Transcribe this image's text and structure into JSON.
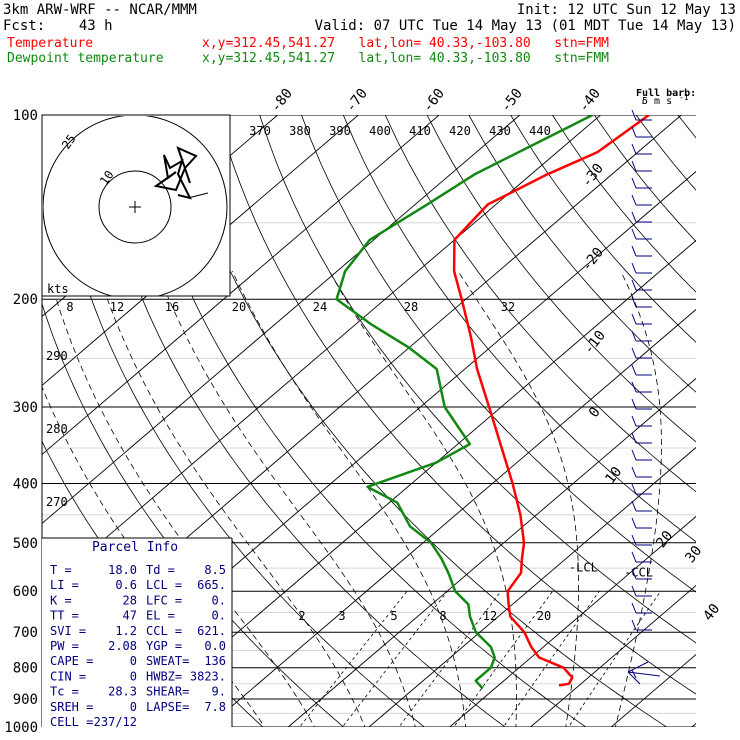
{
  "header": {
    "model": "3km ARW-WRF -- NCAR/MMM",
    "init": "Init: 12 UTC Sun 12 May 13",
    "fcst": "Fcst:    43 h",
    "valid": "Valid: 07 UTC Tue 14 May 13 (01 MDT Tue 14 May 13)",
    "temp_label": "Temperature",
    "temp_info": "x,y=312.45,541.27   lat,lon= 40.33,-103.80   stn=FMM",
    "dew_label": "Dewpoint temperature",
    "dew_info": "x,y=312.45,541.27   lat,lon= 40.33,-103.80   stn=FMM"
  },
  "colors": {
    "temperature": "#ff0000",
    "dewpoint": "#118811",
    "wind_barbs": "#000080",
    "text": "#000000"
  },
  "barb_legend": {
    "title": "Full barb:",
    "value": "5 m s",
    "exponent": "-1"
  },
  "parcel_info": {
    "title": "Parcel Info",
    "rows": [
      {
        "l": "T   =",
        "lv": "18.0",
        "r": "Td  =",
        "rv": "8.5"
      },
      {
        "l": "LI  =",
        "lv": "0.6",
        "r": "LCL =",
        "rv": "665."
      },
      {
        "l": "K   =",
        "lv": "28",
        "r": "LFC =",
        "rv": "0."
      },
      {
        "l": "TT  =",
        "lv": "47",
        "r": "EL  =",
        "rv": "0."
      },
      {
        "l": "SVI =",
        "lv": "1.2",
        "r": "CCL =",
        "rv": "621."
      },
      {
        "l": "PW  =",
        "lv": "2.08",
        "r": "YGP =",
        "rv": "0.0"
      },
      {
        "l": "CAPE =",
        "lv": "0",
        "r": "SWEAT=",
        "rv": "136"
      },
      {
        "l": "CIN  =",
        "lv": "0",
        "r": "HWBZ=",
        "rv": "3823."
      },
      {
        "l": "Tc  =",
        "lv": "28.3",
        "r": "SHEAR=",
        "rv": "9."
      },
      {
        "l": "SREH =",
        "lv": "0",
        "r": "LAPSE=",
        "rv": "7.8"
      },
      {
        "l": "CELL =",
        "lv": "237/12",
        "r": "",
        "rv": ""
      }
    ]
  },
  "hodograph": {
    "units": "kts",
    "ring_labels": [
      "25",
      "10"
    ],
    "speed_axis_labels": [
      "8",
      "12",
      "16",
      "20",
      "24",
      "28",
      "32"
    ]
  },
  "markers": {
    "ccl": "-CCL",
    "lcl": "-LCL"
  },
  "chart_data": {
    "type": "line",
    "chart_kind": "skew-T log-p",
    "pressure_ticks": [
      "100",
      "200",
      "300",
      "400",
      "500",
      "600",
      "700",
      "800",
      "900",
      "1000"
    ],
    "isotherm_labels_top": [
      "-80",
      "-70",
      "-60",
      "-50",
      "-40"
    ],
    "isotherm_labels_right": [
      "-30",
      "-20",
      "-10",
      "0",
      "10",
      "20",
      "30",
      "40"
    ],
    "theta_labels_top": [
      "370",
      "380",
      "390",
      "400",
      "410",
      "420",
      "430",
      "440"
    ],
    "theta_labels_left": [
      "290",
      "280",
      "270"
    ],
    "mixing_ratio_labels": [
      "2",
      "3",
      "5",
      "8",
      "12",
      "20"
    ],
    "series": [
      {
        "name": "Temperature",
        "pressure_hPa": [
          855,
          850,
          830,
          800,
          770,
          740,
          700,
          660,
          630,
          600,
          560,
          530,
          500,
          450,
          400,
          350,
          300,
          260,
          230,
          200,
          180,
          160,
          140,
          125,
          115,
          100
        ],
        "temp_C": [
          17.5,
          18.5,
          18.0,
          15.5,
          11.0,
          8.5,
          5.5,
          1.5,
          -0.5,
          -2.5,
          -3.5,
          -5.5,
          -7.5,
          -12.0,
          -17.5,
          -24.0,
          -31.5,
          -38.5,
          -44.0,
          -50.5,
          -55.5,
          -60.0,
          -61.0,
          -58.0,
          -55.0,
          -54.0
        ]
      },
      {
        "name": "Dewpoint temperature",
        "pressure_hPa": [
          865,
          840,
          800,
          770,
          740,
          700,
          660,
          630,
          600,
          560,
          530,
          500,
          470,
          430,
          405,
          370,
          345,
          300,
          260,
          240,
          220,
          200,
          180,
          160,
          140,
          125,
          100
        ],
        "temp_C": [
          8.5,
          6.5,
          6.5,
          5.5,
          3.5,
          -0.5,
          -3.5,
          -5.5,
          -9.0,
          -12.5,
          -15.5,
          -19.0,
          -24.0,
          -29.0,
          -35.0,
          -30.0,
          -28.5,
          -37.0,
          -43.5,
          -50.0,
          -58.0,
          -66.0,
          -69.0,
          -70.5,
          -68.5,
          -67.0,
          -61.0
        ]
      }
    ],
    "xlim_C_at_1000": [
      -40.5,
      40.5
    ],
    "ylim_hPa": [
      1000,
      100
    ],
    "grid": true
  }
}
